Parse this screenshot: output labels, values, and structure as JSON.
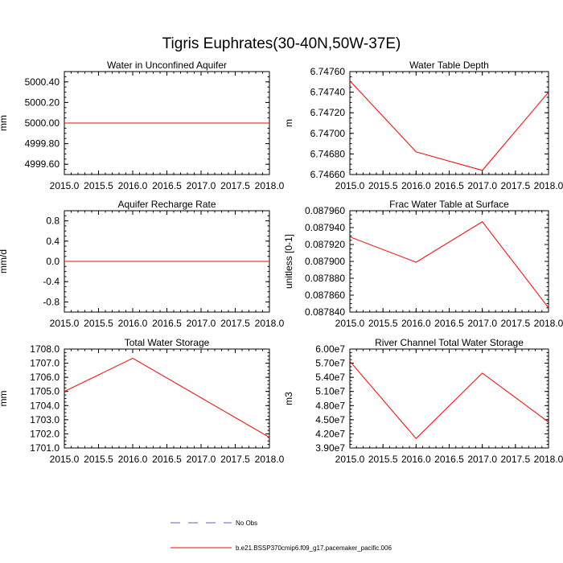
{
  "figure_title": "Tigris Euphrates(30-40N,50W-37E)",
  "chart_data": [
    {
      "type": "line",
      "title": "Water in Unconfined Aquifer",
      "xlabel": "",
      "ylabel": "mm",
      "xlim": [
        2015.0,
        2018.0
      ],
      "ylim": [
        4999.5,
        5000.5
      ],
      "xticks": [
        "2015.0",
        "2015.5",
        "2016.0",
        "2016.5",
        "2017.0",
        "2017.5",
        "2018.0"
      ],
      "yticks": [
        "5000.40",
        "5000.20",
        "5000.00",
        "4999.80",
        "4999.60"
      ],
      "x": [
        2015.0,
        2016.0,
        2017.0,
        2018.0
      ],
      "series": [
        {
          "values": [
            5000.0,
            5000.0,
            5000.0,
            5000.0
          ],
          "color": "#ff0000"
        }
      ]
    },
    {
      "type": "line",
      "title": "Water Table Depth",
      "xlabel": "",
      "ylabel": "m",
      "xlim": [
        2015.0,
        2018.0
      ],
      "ylim": [
        6.7466,
        6.7476
      ],
      "xticks": [
        "2015.0",
        "2015.5",
        "2016.0",
        "2016.5",
        "2017.0",
        "2017.5",
        "2018.0"
      ],
      "yticks": [
        "6.74760",
        "6.74740",
        "6.74720",
        "6.74700",
        "6.74680",
        "6.74660"
      ],
      "x": [
        2015.0,
        2016.0,
        2017.0,
        2018.0
      ],
      "series": [
        {
          "values": [
            6.74751,
            6.74682,
            6.74664,
            6.7474
          ],
          "color": "#ff0000"
        }
      ]
    },
    {
      "type": "line",
      "title": "Aquifer Recharge Rate",
      "xlabel": "",
      "ylabel": "mm/d",
      "xlim": [
        2015.0,
        2018.0
      ],
      "ylim": [
        -1.0,
        1.0
      ],
      "xticks": [
        "2015.0",
        "2015.5",
        "2016.0",
        "2016.5",
        "2017.0",
        "2017.5",
        "2018.0"
      ],
      "yticks": [
        "0.8",
        "0.4",
        "0.0",
        "-0.4",
        "-0.8"
      ],
      "x": [
        2015.0,
        2016.0,
        2017.0,
        2018.0
      ],
      "series": [
        {
          "values": [
            0.0,
            0.0,
            0.0,
            0.0
          ],
          "color": "#ff0000"
        }
      ]
    },
    {
      "type": "line",
      "title": "Frac Water Table at Surface",
      "xlabel": "",
      "ylabel": "unitless [0-1]",
      "xlim": [
        2015.0,
        2018.0
      ],
      "ylim": [
        0.08784,
        0.08796
      ],
      "xticks": [
        "2015.0",
        "2015.5",
        "2016.0",
        "2016.5",
        "2017.0",
        "2017.5",
        "2018.0"
      ],
      "yticks": [
        "0.087960",
        "0.087940",
        "0.087920",
        "0.087900",
        "0.087880",
        "0.087860",
        "0.087840"
      ],
      "x": [
        2015.0,
        2016.0,
        2017.0,
        2018.0
      ],
      "series": [
        {
          "values": [
            0.087929,
            0.087899,
            0.087947,
            0.087845
          ],
          "color": "#ff0000"
        }
      ]
    },
    {
      "type": "line",
      "title": "Total Water Storage",
      "xlabel": "",
      "ylabel": "mm",
      "xlim": [
        2015.0,
        2018.0
      ],
      "ylim": [
        1701.0,
        1708.0
      ],
      "xticks": [
        "2015.0",
        "2015.5",
        "2016.0",
        "2016.5",
        "2017.0",
        "2017.5",
        "2018.0"
      ],
      "yticks": [
        "1708.0",
        "1707.0",
        "1706.0",
        "1705.0",
        "1704.0",
        "1703.0",
        "1702.0",
        "1701.0"
      ],
      "x": [
        2015.0,
        2016.0,
        2017.0,
        2018.0
      ],
      "series": [
        {
          "values": [
            1705.0,
            1707.35,
            1704.55,
            1701.75
          ],
          "color": "#ff0000"
        }
      ]
    },
    {
      "type": "line",
      "title": "River Channel Total Water Storage",
      "xlabel": "",
      "ylabel": "m3",
      "xlim": [
        2015.0,
        2018.0
      ],
      "ylim": [
        39000000,
        60000000
      ],
      "xticks": [
        "2015.0",
        "2015.5",
        "2016.0",
        "2016.5",
        "2017.0",
        "2017.5",
        "2018.0"
      ],
      "yticks": [
        "6.00e7",
        "5.70e7",
        "5.40e7",
        "5.10e7",
        "4.80e7",
        "4.50e7",
        "4.20e7",
        "3.90e7"
      ],
      "x": [
        2015.0,
        2016.0,
        2017.0,
        2018.0
      ],
      "series": [
        {
          "values": [
            57400000,
            41000000,
            54900000,
            44500000
          ],
          "color": "#ff0000"
        }
      ]
    }
  ],
  "legend": {
    "placement": "bottom-center",
    "entries": [
      {
        "label": "No Obs",
        "color": "#6a5acd",
        "style": "dashed"
      },
      {
        "label": "b.e21.BSSP370cmip6.f09_g17.pacemaker_pacific.006",
        "color": "#ff0000",
        "style": "solid"
      }
    ]
  }
}
